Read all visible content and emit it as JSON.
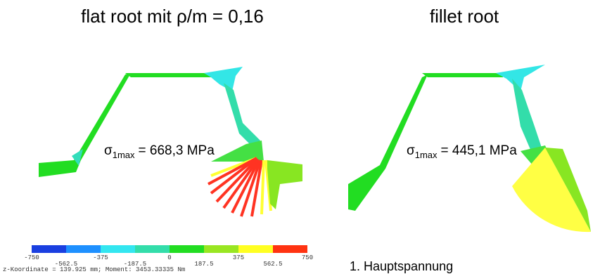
{
  "panels": [
    {
      "title": "flat root mit ρ/m = 0,16",
      "stress": {
        "symbol": "σ",
        "subscript": "1max",
        "value": "= 668,3 MPa"
      }
    },
    {
      "title": "fillet root",
      "stress": {
        "symbol": "σ",
        "subscript": "1max",
        "value": "= 445,1 MPa"
      }
    }
  ],
  "colorbar": {
    "ticks": [
      "-750",
      "-562.5",
      "-375",
      "-187.5",
      "0",
      "187.5",
      "375",
      "562.5",
      "750"
    ]
  },
  "footer": "z-Koordinate = 139.925 mm; Moment: 3453.33335 Nm",
  "caption": "1. Hauptspannung"
}
